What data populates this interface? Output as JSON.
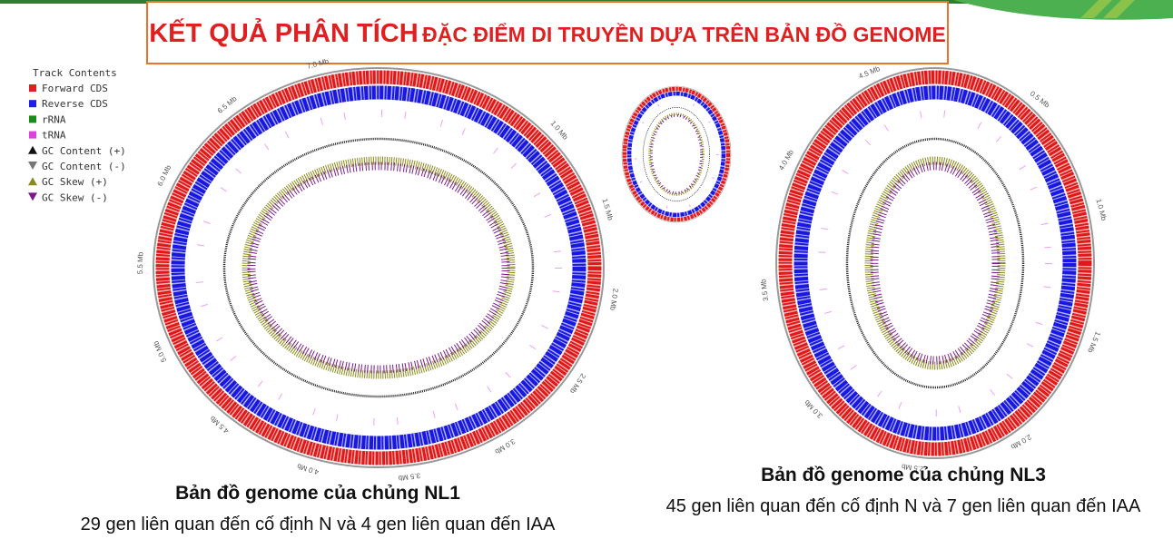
{
  "header": {
    "title_main": "KẾT QUẢ PHÂN TÍCH",
    "title_rest": "ĐẶC ĐIỂM DI TRUYỀN DỰA TRÊN BẢN ĐỒ GENOME"
  },
  "legend": {
    "title": "Track Contents",
    "items": [
      "Forward CDS",
      "Reverse CDS",
      "rRNA",
      "tRNA",
      "GC Content (+)",
      "GC Content (-)",
      "GC Skew (+)",
      "GC Skew (-)"
    ]
  },
  "maps": [
    {
      "labels": [
        "1.0 Mb",
        "1.5 Mb",
        "2.0 Mb",
        "2.5 Mb",
        "3.0 Mb",
        "3.5 Mb",
        "4.0 Mb",
        "4.5 Mb",
        "5.0 Mb",
        "5.5 Mb",
        "6.0 Mb",
        "6.5 Mb",
        "7.0 Mb"
      ],
      "caption": "Bản đồ genome của chủng NL1",
      "description": "29 gen liên quan đến cố định N và 4 gen liên quan đến IAA"
    },
    {
      "labels": [
        "0.5 Mb",
        "1.0 Mb",
        "1.5 Mb",
        "2.0 Mb",
        "2.5 Mb",
        "3.0 Mb",
        "3.5 Mb",
        "4.0 Mb",
        "4.5 Mb"
      ],
      "caption": "Bản đồ genome của chủng NL3",
      "description": "45 gen liên quan đến cố định N và 7 gen liên quan đến IAA"
    }
  ]
}
